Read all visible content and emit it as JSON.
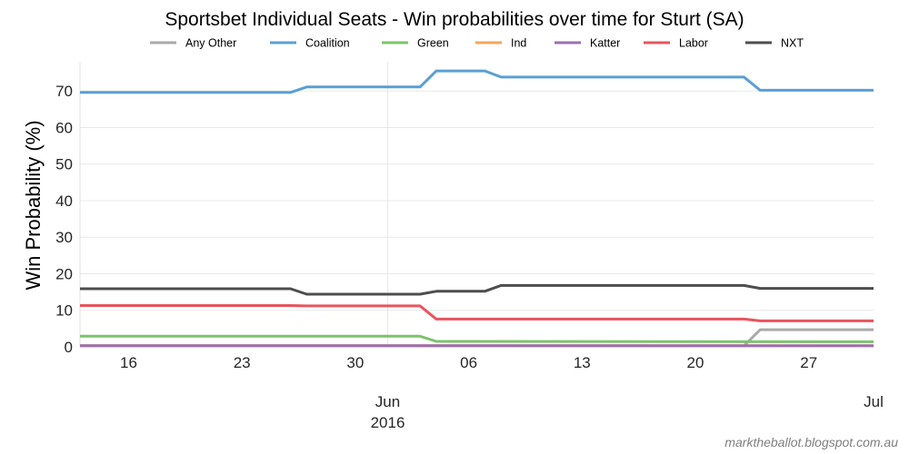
{
  "chart_data": {
    "type": "line",
    "title": "Sportsbet Individual Seats - Win probabilities over time for Sturt (SA)",
    "ylabel": "Win Probability (%)",
    "xlabel": "",
    "ylim": [
      0,
      78
    ],
    "yticks": [
      0,
      10,
      20,
      30,
      40,
      50,
      60,
      70
    ],
    "xlim": [
      "2016-05-13",
      "2016-07-01"
    ],
    "xticks": [
      {
        "date": "2016-05-16",
        "label": "16"
      },
      {
        "date": "2016-05-23",
        "label": "23"
      },
      {
        "date": "2016-05-30",
        "label": "30"
      },
      {
        "date": "2016-06-06",
        "label": "06"
      },
      {
        "date": "2016-06-13",
        "label": "13"
      },
      {
        "date": "2016-06-20",
        "label": "20"
      },
      {
        "date": "2016-06-27",
        "label": "27"
      }
    ],
    "major_ticks": [
      {
        "date": "2016-06-01",
        "label": "Jun",
        "sublabel": "2016"
      },
      {
        "date": "2016-07-01",
        "label": "Jul",
        "sublabel": ""
      }
    ],
    "legend_position": "top",
    "grid": true,
    "series": [
      {
        "name": "Any Other",
        "color": "#a9a9a9",
        "points": [
          [
            "2016-05-13",
            0.3
          ],
          [
            "2016-06-23",
            0.3
          ],
          [
            "2016-06-24",
            4.7
          ],
          [
            "2016-07-01",
            4.7
          ]
        ]
      },
      {
        "name": "Coalition",
        "color": "#5a9fd4",
        "points": [
          [
            "2016-05-13",
            69.6
          ],
          [
            "2016-05-26",
            69.6
          ],
          [
            "2016-05-27",
            71.1
          ],
          [
            "2016-06-03",
            71.1
          ],
          [
            "2016-06-04",
            75.5
          ],
          [
            "2016-06-07",
            75.5
          ],
          [
            "2016-06-08",
            73.8
          ],
          [
            "2016-06-23",
            73.8
          ],
          [
            "2016-06-24",
            70.2
          ],
          [
            "2016-07-01",
            70.2
          ]
        ]
      },
      {
        "name": "Green",
        "color": "#7bc36b",
        "points": [
          [
            "2016-05-13",
            2.9
          ],
          [
            "2016-06-03",
            2.9
          ],
          [
            "2016-06-04",
            1.5
          ],
          [
            "2016-07-01",
            1.4
          ]
        ]
      },
      {
        "name": "Ind",
        "color": "#f5a55a",
        "points": [
          [
            "2016-05-13",
            0.3
          ],
          [
            "2016-07-01",
            0.3
          ]
        ]
      },
      {
        "name": "Katter",
        "color": "#9c6fb0",
        "points": [
          [
            "2016-05-13",
            0.3
          ],
          [
            "2016-07-01",
            0.3
          ]
        ]
      },
      {
        "name": "Labor",
        "color": "#e8545e",
        "points": [
          [
            "2016-05-13",
            11.3
          ],
          [
            "2016-05-26",
            11.3
          ],
          [
            "2016-05-27",
            11.2
          ],
          [
            "2016-06-03",
            11.2
          ],
          [
            "2016-06-04",
            7.6
          ],
          [
            "2016-06-23",
            7.6
          ],
          [
            "2016-06-24",
            7.1
          ],
          [
            "2016-07-01",
            7.1
          ]
        ]
      },
      {
        "name": "NXT",
        "color": "#4d4d4d",
        "points": [
          [
            "2016-05-13",
            15.9
          ],
          [
            "2016-05-26",
            15.9
          ],
          [
            "2016-05-27",
            14.4
          ],
          [
            "2016-06-03",
            14.4
          ],
          [
            "2016-06-04",
            15.2
          ],
          [
            "2016-06-07",
            15.2
          ],
          [
            "2016-06-08",
            16.8
          ],
          [
            "2016-06-23",
            16.8
          ],
          [
            "2016-06-24",
            16.0
          ],
          [
            "2016-07-01",
            16.0
          ]
        ]
      }
    ]
  },
  "footer": {
    "source": "marktheballot.blogspot.com.au"
  }
}
